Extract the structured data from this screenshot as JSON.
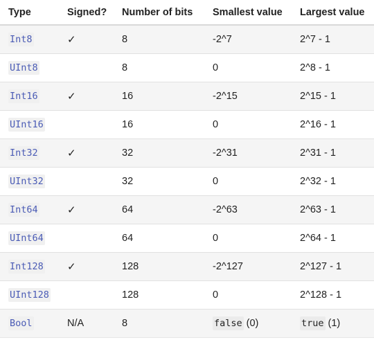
{
  "headers": {
    "type": "Type",
    "signed": "Signed?",
    "bits": "Number of bits",
    "smallest": "Smallest value",
    "largest": "Largest value"
  },
  "rows": [
    {
      "type": "Int8",
      "signed": "✓",
      "bits": "8",
      "smallest": "-2^7",
      "largest": "2^7 - 1"
    },
    {
      "type": "UInt8",
      "signed": "",
      "bits": "8",
      "smallest": "0",
      "largest": "2^8 - 1"
    },
    {
      "type": "Int16",
      "signed": "✓",
      "bits": "16",
      "smallest": "-2^15",
      "largest": "2^15 - 1"
    },
    {
      "type": "UInt16",
      "signed": "",
      "bits": "16",
      "smallest": "0",
      "largest": "2^16 - 1"
    },
    {
      "type": "Int32",
      "signed": "✓",
      "bits": "32",
      "smallest": "-2^31",
      "largest": "2^31 - 1"
    },
    {
      "type": "UInt32",
      "signed": "",
      "bits": "32",
      "smallest": "0",
      "largest": "2^32 - 1"
    },
    {
      "type": "Int64",
      "signed": "✓",
      "bits": "64",
      "smallest": "-2^63",
      "largest": "2^63 - 1"
    },
    {
      "type": "UInt64",
      "signed": "",
      "bits": "64",
      "smallest": "0",
      "largest": "2^64 - 1"
    },
    {
      "type": "Int128",
      "signed": "✓",
      "bits": "128",
      "smallest": "-2^127",
      "largest": "2^127 - 1"
    },
    {
      "type": "UInt128",
      "signed": "",
      "bits": "128",
      "smallest": "0",
      "largest": "2^128 - 1"
    },
    {
      "type": "Bool",
      "signed": "N/A",
      "bits": "8",
      "smallest_code": "false",
      "smallest_suffix": " (0)",
      "largest_code": "true",
      "largest_suffix": " (1)"
    }
  ]
}
